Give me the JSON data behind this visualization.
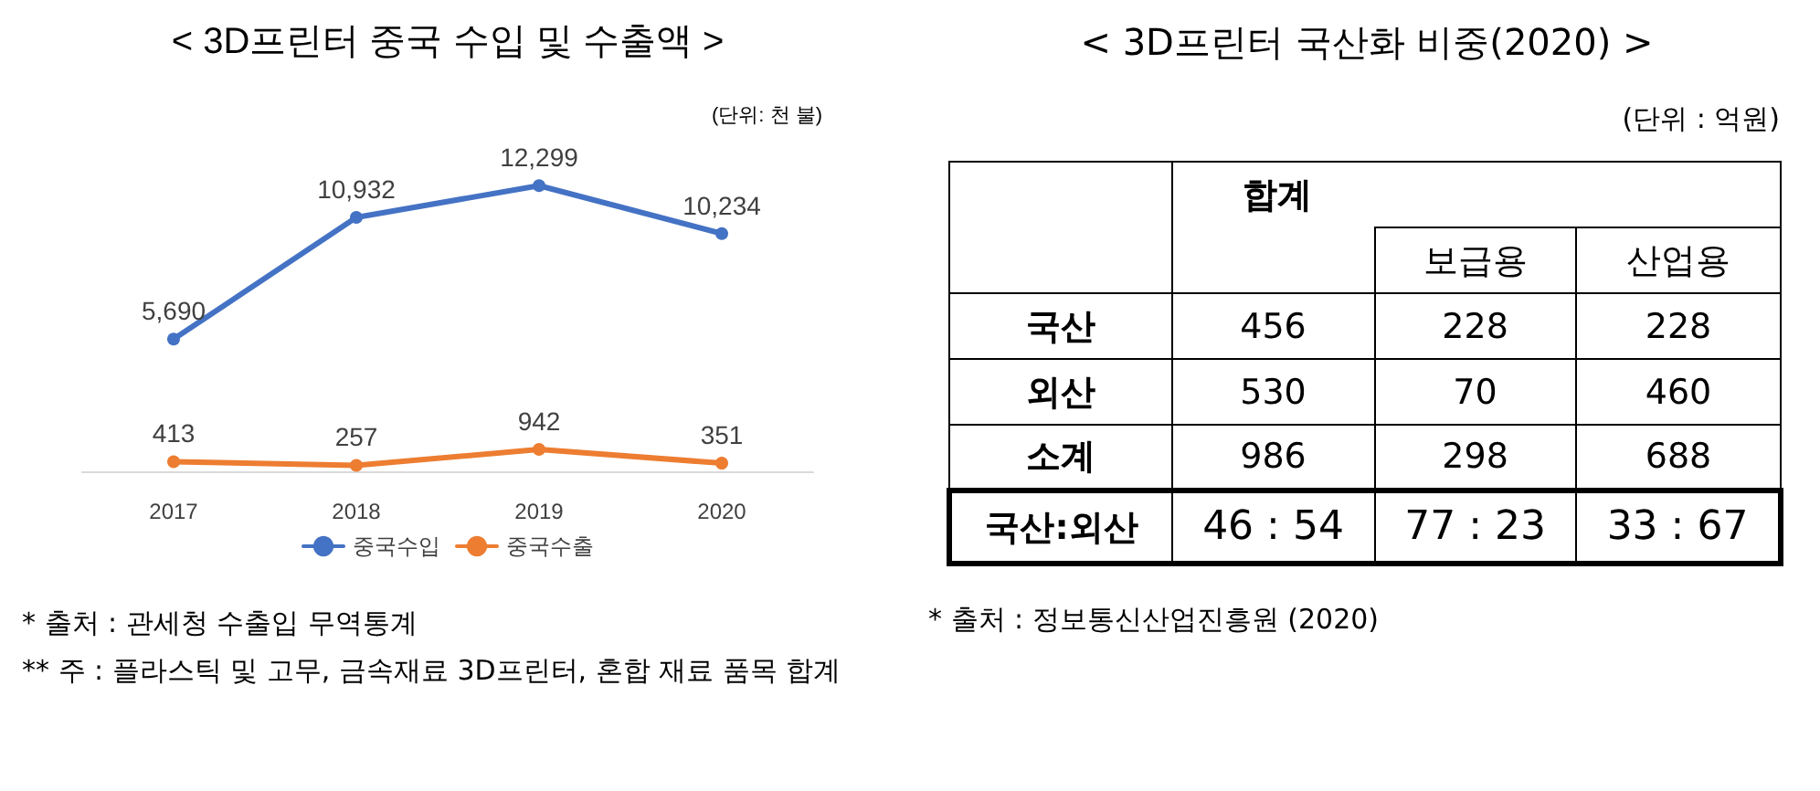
{
  "chart_data": [
    {
      "type": "line",
      "title": "< 3D프린터 중국 수입 및 수출액 >",
      "categories": [
        "2017",
        "2018",
        "2019",
        "2020"
      ],
      "series": [
        {
          "name": "중국수입",
          "color": "#4472c4",
          "values": [
            5690,
            10932,
            12299,
            10234
          ],
          "value_labels": [
            "5,690",
            "10,932",
            "12,299",
            "10,234"
          ]
        },
        {
          "name": "중국수출",
          "color": "#ed7d31",
          "values": [
            413,
            257,
            942,
            351
          ],
          "value_labels": [
            "413",
            "257",
            "942",
            "351"
          ]
        }
      ],
      "legend": "bottom",
      "marker": "circle",
      "grid": false,
      "annotations": [
        "(단위: 천 불)",
        "* 출처 : 관세청 수출입 무역통계",
        "** 주 : 플라스틱 및 고무, 금속재료 3D프린터, 혼합 재료 품목 합계"
      ]
    },
    {
      "type": "other",
      "title": "< 3D프린터 국산화 비중(2020) >",
      "categories": [
        "합계",
        "보급용",
        "산업용"
      ],
      "y_categories": [
        "국산",
        "외산",
        "소계",
        "국산:외산"
      ],
      "cell_labels": [
        [
          "456",
          "228",
          "228"
        ],
        [
          "530",
          "70",
          "460"
        ],
        [
          "986",
          "298",
          "688"
        ],
        [
          "46 : 54",
          "77 : 23",
          "33 : 67"
        ]
      ],
      "annotations": [
        "(단위 : 억원)",
        "* 출처 : 정보통신산업진흥원 (2020)"
      ]
    }
  ]
}
